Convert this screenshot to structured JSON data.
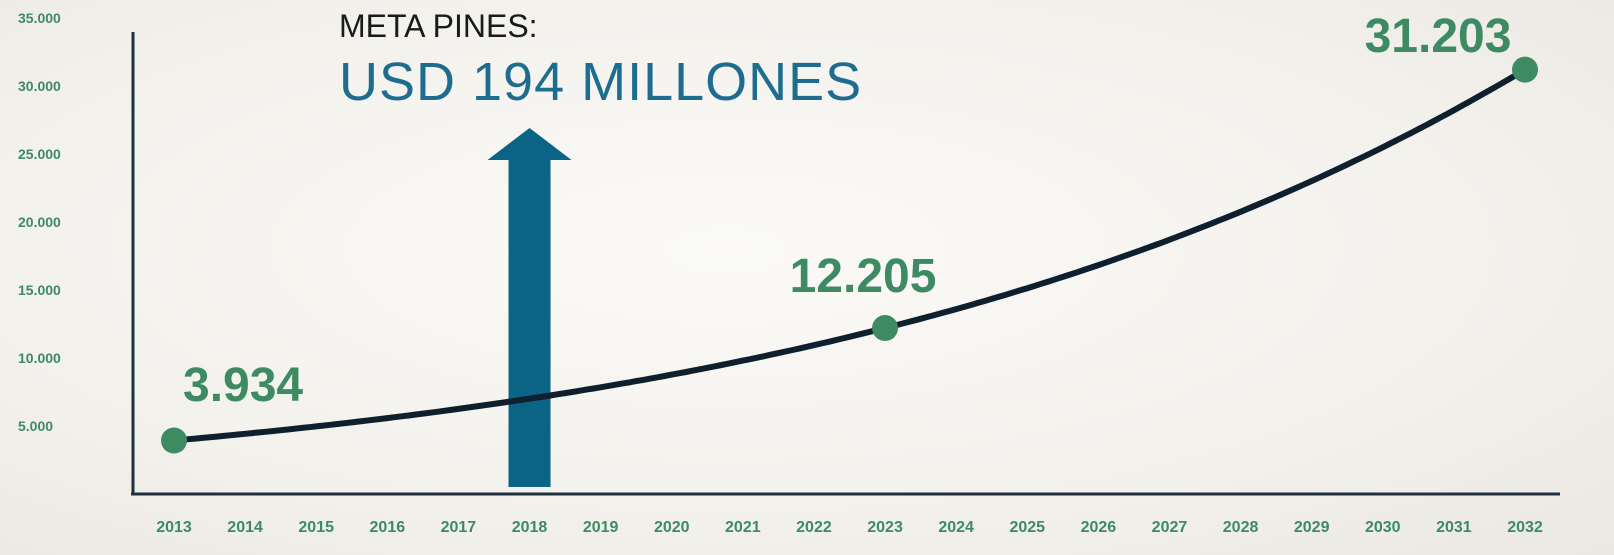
{
  "chart_data": {
    "type": "line",
    "title": "",
    "xlabel": "",
    "ylabel": "",
    "categories": [
      "2013",
      "2014",
      "2015",
      "2016",
      "2017",
      "2018",
      "2019",
      "2020",
      "2021",
      "2022",
      "2023",
      "2024",
      "2025",
      "2026",
      "2027",
      "2028",
      "2029",
      "2030",
      "2031",
      "2032"
    ],
    "y_ticks": [
      "5.000",
      "10.000",
      "15.000",
      "20.000",
      "25.000",
      "30.000",
      "35.000"
    ],
    "ylim": [
      0,
      35000
    ],
    "grid": false,
    "legend": "none",
    "series": [
      {
        "points": [
          {
            "x": "2013",
            "y": 3934
          },
          {
            "x": "2023",
            "y": 12205
          },
          {
            "x": "2032",
            "y": 31203
          }
        ]
      }
    ],
    "data_labels": [
      "3.934",
      "12.205",
      "31.203"
    ],
    "annotation": {
      "line1": "META PINES:",
      "line2": "USD 194 MILLONES",
      "arrow_at": "2018"
    },
    "colors": {
      "line": "#0f1f2e",
      "points": "#3d8a63",
      "labels": "#3d8a63",
      "arrow": "#0b6385",
      "annotation_main": "#1e6c8f"
    }
  }
}
